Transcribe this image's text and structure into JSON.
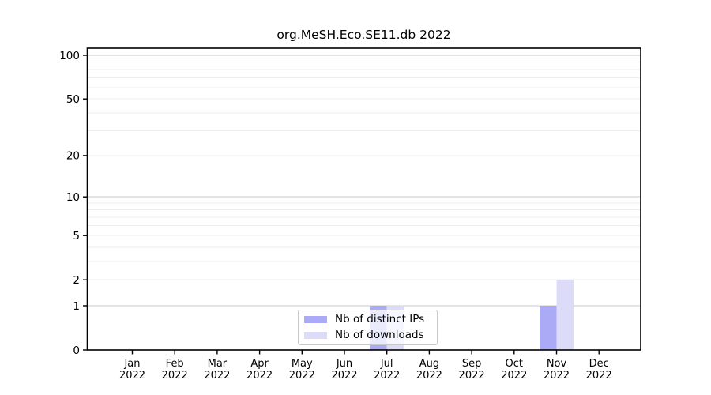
{
  "chart_data": {
    "type": "bar",
    "title": "org.MeSH.Eco.SE11.db 2022",
    "categories": [
      "Jan 2022",
      "Feb 2022",
      "Mar 2022",
      "Apr 2022",
      "May 2022",
      "Jun 2022",
      "Jul 2022",
      "Aug 2022",
      "Sep 2022",
      "Oct 2022",
      "Nov 2022",
      "Dec 2022"
    ],
    "series": [
      {
        "name": "Nb of distinct IPs",
        "color": "#aaaaf6",
        "values": [
          0,
          0,
          0,
          0,
          0,
          0,
          1,
          0,
          0,
          0,
          1,
          0
        ]
      },
      {
        "name": "Nb of downloads",
        "color": "#dcdcf9",
        "values": [
          0,
          0,
          0,
          0,
          0,
          0,
          1,
          0,
          0,
          0,
          2,
          0
        ]
      }
    ],
    "xlabel": "",
    "ylabel": "",
    "yticks": [
      0,
      1,
      2,
      5,
      10,
      20,
      50,
      100
    ],
    "ylim": [
      0,
      112
    ],
    "yscale": "log1p",
    "grid": true,
    "legend_position": "lower center",
    "colors": {
      "axis": "#000000",
      "grid_major": "#c8c8c8",
      "grid_minor": "#ececec",
      "legend_border": "#c9c9c9",
      "text": "#000000"
    }
  }
}
